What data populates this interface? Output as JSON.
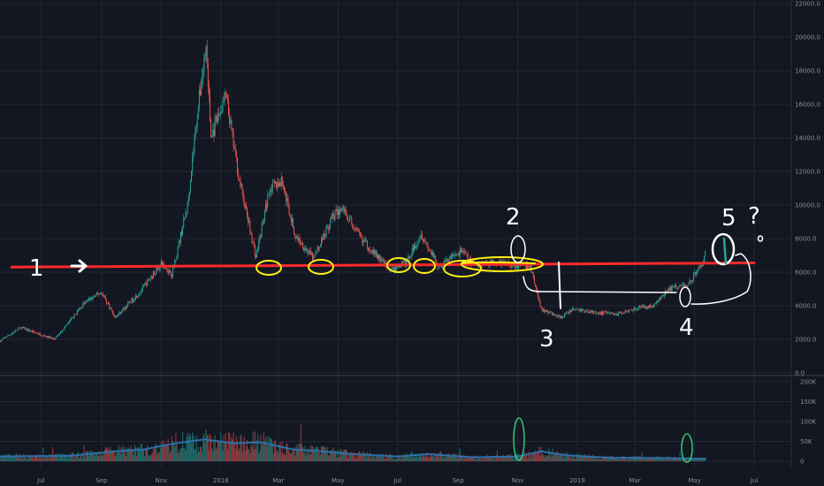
{
  "chart_data": {
    "type": "candlestick",
    "grid": true,
    "price_axis": {
      "ticks": [
        {
          "value": 0,
          "label": "0.0"
        },
        {
          "value": 2000,
          "label": "2000.0"
        },
        {
          "value": 4000,
          "label": "4000.0"
        },
        {
          "value": 6000,
          "label": "6000.0"
        },
        {
          "value": 8000,
          "label": "8000.0"
        },
        {
          "value": 10000,
          "label": "10000.0"
        },
        {
          "value": 12000,
          "label": "12000.0"
        },
        {
          "value": 14000,
          "label": "14000.0"
        },
        {
          "value": 16000,
          "label": "16000.0"
        },
        {
          "value": 18000,
          "label": "18000.0"
        },
        {
          "value": 20000,
          "label": "20000.0"
        },
        {
          "value": 22000,
          "label": "22000.0"
        }
      ],
      "range": [
        0,
        22000
      ]
    },
    "volume_axis": {
      "ticks": [
        {
          "value": 0,
          "label": "0"
        },
        {
          "value": 50000,
          "label": "50K"
        },
        {
          "value": 100000,
          "label": "100K"
        },
        {
          "value": 150000,
          "label": "150K"
        },
        {
          "value": 200000,
          "label": "200K"
        }
      ],
      "range": [
        0,
        200000
      ]
    },
    "time_axis": {
      "ticks": [
        {
          "date": "2017-07-01",
          "label": "Jul"
        },
        {
          "date": "2017-09-01",
          "label": "Sep"
        },
        {
          "date": "2017-11-01",
          "label": "Nov"
        },
        {
          "date": "2018-01-01",
          "label": "2018"
        },
        {
          "date": "2018-03-01",
          "label": "Mar"
        },
        {
          "date": "2018-05-01",
          "label": "May"
        },
        {
          "date": "2018-07-01",
          "label": "Jul"
        },
        {
          "date": "2018-09-01",
          "label": "Sep"
        },
        {
          "date": "2018-11-01",
          "label": "Nov"
        },
        {
          "date": "2019-01-01",
          "label": "2019"
        },
        {
          "date": "2019-03-01",
          "label": "Mar"
        },
        {
          "date": "2019-05-01",
          "label": "May"
        },
        {
          "date": "2019-07-01",
          "label": "Jul"
        }
      ],
      "range": [
        "2017-05-20",
        "2019-07-30"
      ]
    },
    "price_path": [
      [
        "2017-05-20",
        1900
      ],
      [
        "2017-06-10",
        2700
      ],
      [
        "2017-07-15",
        2000
      ],
      [
        "2017-08-15",
        4200
      ],
      [
        "2017-09-01",
        4800
      ],
      [
        "2017-09-15",
        3300
      ],
      [
        "2017-10-10",
        4800
      ],
      [
        "2017-11-01",
        6500
      ],
      [
        "2017-11-12",
        5900
      ],
      [
        "2017-11-28",
        10000
      ],
      [
        "2017-12-08",
        15500
      ],
      [
        "2017-12-17",
        19500
      ],
      [
        "2017-12-22",
        14000
      ],
      [
        "2018-01-06",
        16500
      ],
      [
        "2018-01-20",
        11500
      ],
      [
        "2018-02-06",
        6900
      ],
      [
        "2018-02-20",
        11000
      ],
      [
        "2018-03-05",
        11400
      ],
      [
        "2018-03-18",
        8200
      ],
      [
        "2018-04-06",
        6800
      ],
      [
        "2018-04-25",
        9300
      ],
      [
        "2018-05-06",
        9800
      ],
      [
        "2018-05-20",
        8400
      ],
      [
        "2018-06-01",
        7500
      ],
      [
        "2018-06-24",
        6100
      ],
      [
        "2018-07-10",
        6600
      ],
      [
        "2018-07-25",
        8300
      ],
      [
        "2018-08-12",
        6300
      ],
      [
        "2018-08-28",
        7000
      ],
      [
        "2018-09-05",
        7300
      ],
      [
        "2018-09-15",
        6500
      ],
      [
        "2018-10-10",
        6600
      ],
      [
        "2018-11-14",
        6300
      ],
      [
        "2018-11-25",
        3800
      ],
      [
        "2018-12-15",
        3300
      ],
      [
        "2018-12-28",
        3800
      ],
      [
        "2019-01-20",
        3600
      ],
      [
        "2019-02-10",
        3500
      ],
      [
        "2019-03-01",
        3850
      ],
      [
        "2019-03-20",
        4000
      ],
      [
        "2019-04-05",
        5000
      ],
      [
        "2019-04-25",
        5300
      ],
      [
        "2019-05-11",
        6800
      ],
      [
        "2019-05-13",
        8000
      ]
    ],
    "volume_avg_path": [
      [
        "2017-05-20",
        12000
      ],
      [
        "2017-08-01",
        14000
      ],
      [
        "2017-09-15",
        25000
      ],
      [
        "2017-10-15",
        30000
      ],
      [
        "2017-11-15",
        45000
      ],
      [
        "2017-12-15",
        55000
      ],
      [
        "2018-01-15",
        45000
      ],
      [
        "2018-02-10",
        48000
      ],
      [
        "2018-03-15",
        30000
      ],
      [
        "2018-04-15",
        25000
      ],
      [
        "2018-05-15",
        18000
      ],
      [
        "2018-07-01",
        12000
      ],
      [
        "2018-08-01",
        18000
      ],
      [
        "2018-09-15",
        10000
      ],
      [
        "2018-11-01",
        12000
      ],
      [
        "2018-11-25",
        25000
      ],
      [
        "2018-12-20",
        15000
      ],
      [
        "2019-02-01",
        9000
      ],
      [
        "2019-04-01",
        8000
      ],
      [
        "2019-05-13",
        6000
      ]
    ],
    "support_line": {
      "start": [
        "2017-06-01",
        6300
      ],
      "end": [
        "2019-07-01",
        6550
      ],
      "color": "#ff2a2a"
    },
    "annotations": {
      "labels": [
        "1",
        "2",
        "3",
        "4",
        "5",
        "?"
      ],
      "arrow": "right-arrow",
      "colors": {
        "highlight": "#ffef14",
        "pen": "#ffffff",
        "volume_mark": "#2ecc71"
      }
    },
    "colors": {
      "background": "#131722",
      "grid": "#232734",
      "up": "#26a69a",
      "down": "#ef5350",
      "volume_line": "#2e6fa8"
    }
  }
}
